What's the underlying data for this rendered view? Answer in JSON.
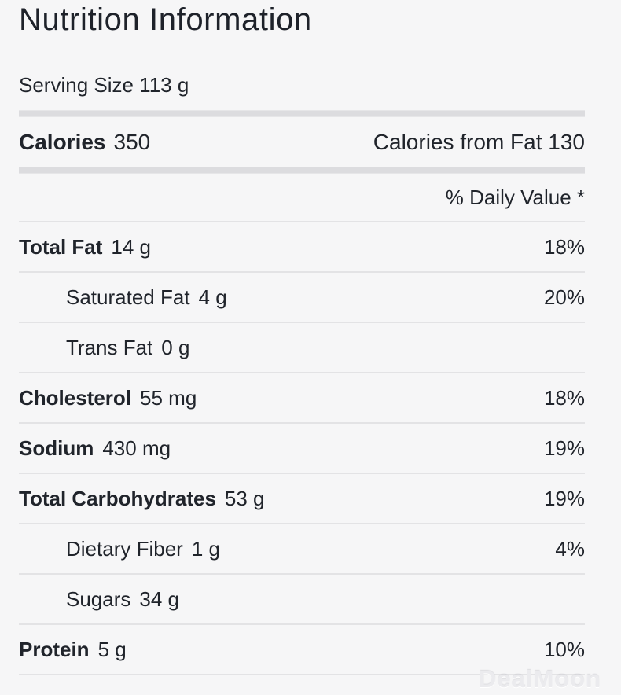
{
  "panel": {
    "title": "Nutrition Information",
    "serving_size": "Serving Size 113 g",
    "calories": {
      "label": "Calories",
      "value": "350"
    },
    "calories_from_fat": "Calories from Fat 130",
    "daily_value_header": "% Daily Value *",
    "nutrients": [
      {
        "label": "Total Fat",
        "amount": "14 g",
        "daily_value": "18%",
        "style": "bold"
      },
      {
        "label": "Saturated Fat",
        "amount": "4 g",
        "daily_value": "20%",
        "style": "indent"
      },
      {
        "label": "Trans Fat",
        "amount": "0 g",
        "daily_value": "",
        "style": "indent"
      },
      {
        "label": "Cholesterol",
        "amount": "55 mg",
        "daily_value": "18%",
        "style": "bold"
      },
      {
        "label": "Sodium",
        "amount": "430 mg",
        "daily_value": "19%",
        "style": "bold"
      },
      {
        "label": "Total Carbohydrates",
        "amount": "53 g",
        "daily_value": "19%",
        "style": "bold"
      },
      {
        "label": "Dietary Fiber",
        "amount": "1 g",
        "daily_value": "4%",
        "style": "indent"
      },
      {
        "label": "Sugars",
        "amount": "34 g",
        "daily_value": "",
        "style": "indent"
      },
      {
        "label": "Protein",
        "amount": "5 g",
        "daily_value": "10%",
        "style": "bold"
      }
    ],
    "watermark": "DealMoon",
    "colors": {
      "background": "#f6f6f7",
      "text": "#20242b",
      "thin_divider": "#e3e3e5",
      "thick_divider": "#dcdcdf",
      "watermark": "#ebebee"
    }
  }
}
